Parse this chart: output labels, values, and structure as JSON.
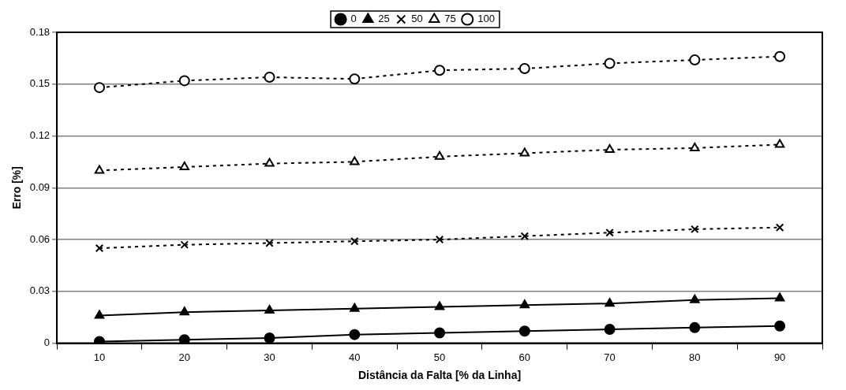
{
  "chart_data": {
    "type": "line",
    "xlabel": "Distância da Falta [% da Linha]",
    "ylabel": "Erro [%]",
    "categories": [
      "10",
      "20",
      "30",
      "40",
      "50",
      "60",
      "70",
      "80",
      "90"
    ],
    "series": [
      {
        "name": "0",
        "color": "#000000",
        "marker": "circle",
        "line_style": "solid",
        "values": [
          0.001,
          0.002,
          0.003,
          0.005,
          0.006,
          0.007,
          0.008,
          0.009,
          0.01
        ]
      },
      {
        "name": "25",
        "color": "#000000",
        "marker": "triangle",
        "line_style": "solid",
        "values": [
          0.016,
          0.018,
          0.019,
          0.02,
          0.021,
          0.022,
          0.023,
          0.025,
          0.026
        ]
      },
      {
        "name": "50",
        "color": "#000000",
        "marker": "cross",
        "line_style": "dashed",
        "values": [
          0.055,
          0.057,
          0.058,
          0.059,
          0.06,
          0.062,
          0.064,
          0.066,
          0.067
        ]
      },
      {
        "name": "75",
        "color": "#000000",
        "marker": "triangle",
        "line_style": "dashed",
        "values": [
          0.1,
          0.102,
          0.104,
          0.105,
          0.108,
          0.11,
          0.112,
          0.113,
          0.115
        ]
      },
      {
        "name": "100",
        "color": "#000000",
        "marker": "circle",
        "line_style": "dashed",
        "values": [
          0.148,
          0.152,
          0.154,
          0.153,
          0.158,
          0.159,
          0.162,
          0.164,
          0.166
        ]
      }
    ],
    "ylim": [
      0,
      0.18
    ],
    "yticks": [
      0,
      0.03,
      0.06,
      0.09,
      0.12,
      0.15,
      0.18
    ],
    "grid": "y",
    "legend": "top"
  }
}
